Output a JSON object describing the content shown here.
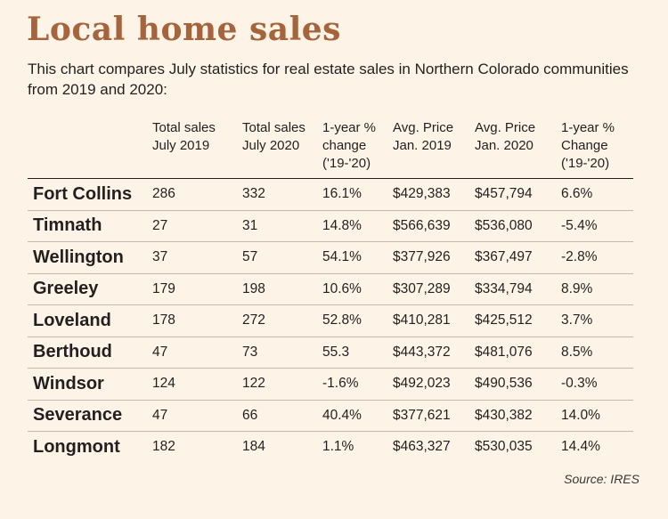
{
  "title": "Local home sales",
  "subtitle": "This chart compares July statistics for real estate sales in Northern Colorado communities from 2019 and 2020:",
  "source": "Source: IRES",
  "colors": {
    "title": "#a5643c",
    "background": "#fdf3e7",
    "text": "#231f20",
    "row_rule": "#c5b9ad"
  },
  "chart_data": {
    "type": "table",
    "title": "Local home sales",
    "columns": [
      "",
      "Total sales July 2019",
      "Total sales July 2020",
      "1-year % change ('19-'20)",
      "Avg. Price Jan. 2019",
      "Avg. Price Jan. 2020",
      "1-year % Change ('19-'20)"
    ],
    "header_lines": [
      [
        ""
      ],
      [
        "Total sales",
        "July 2019"
      ],
      [
        "Total sales",
        "July 2020"
      ],
      [
        "1-year %",
        "change",
        "('19-'20)"
      ],
      [
        "Avg. Price",
        "Jan. 2019"
      ],
      [
        "Avg. Price",
        "Jan. 2020"
      ],
      [
        "1-year %",
        "Change",
        "('19-'20)"
      ]
    ],
    "rows": [
      [
        "Fort Collins",
        "286",
        "332",
        "16.1%",
        "$429,383",
        "$457,794",
        "6.6%"
      ],
      [
        "Timnath",
        "27",
        "31",
        "14.8%",
        "$566,639",
        "$536,080",
        "-5.4%"
      ],
      [
        "Wellington",
        "37",
        "57",
        "54.1%",
        "$377,926",
        "$367,497",
        "-2.8%"
      ],
      [
        "Greeley",
        "179",
        "198",
        "10.6%",
        "$307,289",
        "$334,794",
        "8.9%"
      ],
      [
        "Loveland",
        "178",
        "272",
        "52.8%",
        "$410,281",
        "$425,512",
        "3.7%"
      ],
      [
        "Berthoud",
        "47",
        "73",
        "55.3",
        "$443,372",
        "$481,076",
        "8.5%"
      ],
      [
        "Windsor",
        "124",
        "122",
        "-1.6%",
        "$492,023",
        "$490,536",
        "-0.3%"
      ],
      [
        "Severance",
        "47",
        "66",
        "40.4%",
        "$377,621",
        "$430,382",
        "14.0%"
      ],
      [
        "Longmont",
        "182",
        "184",
        "1.1%",
        "$463,327",
        "$530,035",
        "14.4%"
      ]
    ]
  }
}
